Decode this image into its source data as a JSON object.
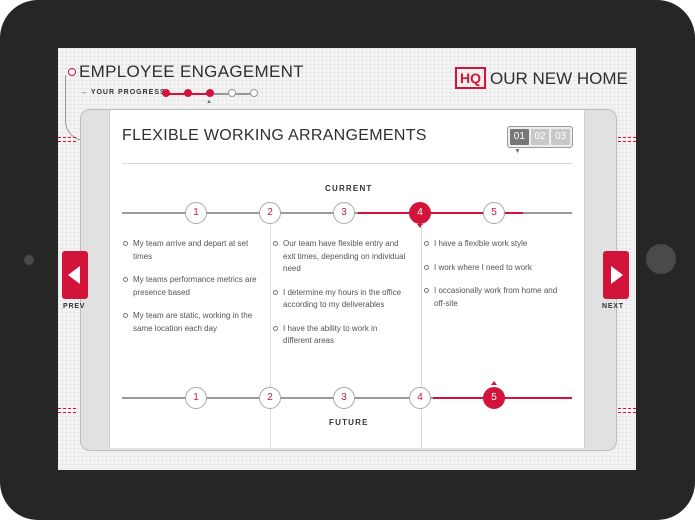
{
  "header": {
    "title": "EMPLOYEE ENGAGEMENT",
    "progress_label": "→ YOUR PROGRESS",
    "progress": {
      "completed": 3,
      "total": 5,
      "current": 3
    }
  },
  "brand": {
    "mark": "HQ",
    "name": "OUR NEW HOME"
  },
  "panel": {
    "title": "FLEXIBLE WORKING ARRANGEMENTS",
    "pages": [
      "01",
      "02",
      "03"
    ],
    "active_page": "01"
  },
  "current": {
    "label": "CURRENT",
    "nodes": [
      "1",
      "2",
      "3",
      "4",
      "5"
    ],
    "selected": 4
  },
  "future": {
    "label": "FUTURE",
    "nodes": [
      "1",
      "2",
      "3",
      "4",
      "5"
    ],
    "selected": 5
  },
  "columns": [
    {
      "items": [
        "My team arrive and depart at set times",
        "My teams performance metrics are presence based",
        "My team are static, working in the same location each day"
      ]
    },
    {
      "items": [
        "Our team have flexible entry and exit times, depending on individual need",
        "I determine my hours in the office according to my deliverables",
        "I have the ability to work in different areas"
      ]
    },
    {
      "items": [
        "I have a flexible work style",
        "I work where I need to work",
        "I occasionally work from home and off-site"
      ]
    }
  ],
  "nav": {
    "prev": "PREV",
    "next": "NEXT"
  },
  "colors": {
    "accent": "#d2143a",
    "text": "#2f2f2f"
  }
}
